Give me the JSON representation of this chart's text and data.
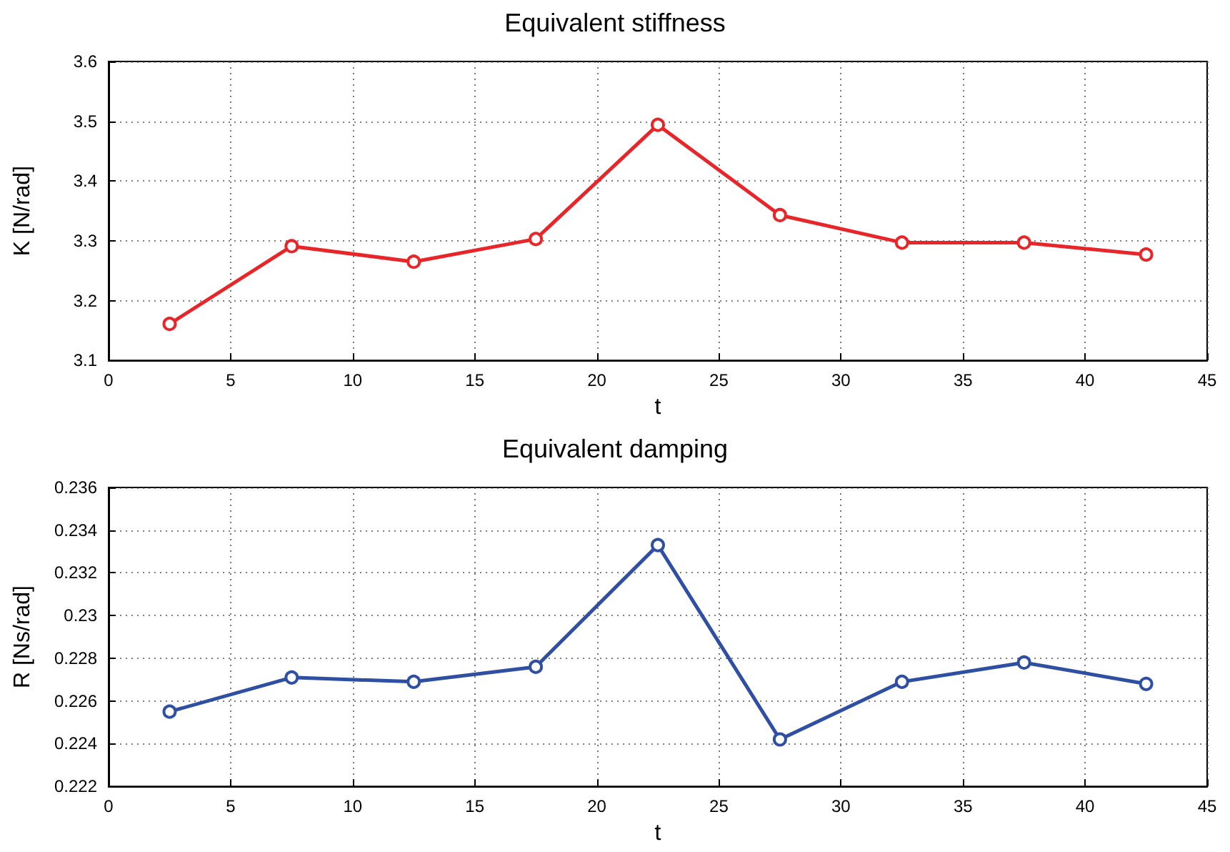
{
  "chart_data": [
    {
      "type": "line",
      "title": "Equivalent stiffness",
      "xlabel": "t",
      "ylabel": "K [N/rad]",
      "x": [
        2.5,
        7.5,
        12.5,
        17.5,
        22.5,
        27.5,
        32.5,
        37.5,
        42.5
      ],
      "series": [
        {
          "color": "#e8262a",
          "values": [
            3.161,
            3.291,
            3.265,
            3.303,
            3.494,
            3.343,
            3.297,
            3.297,
            3.277
          ]
        }
      ],
      "xlim": [
        0,
        45
      ],
      "xticks": [
        0,
        5,
        10,
        15,
        20,
        25,
        30,
        35,
        40,
        45
      ],
      "ylim": [
        3.1,
        3.6
      ],
      "yticks": [
        3.1,
        3.2,
        3.3,
        3.4,
        3.5,
        3.6
      ],
      "grid": true,
      "marker": "circle",
      "line_style": "solid"
    },
    {
      "type": "line",
      "title": "Equivalent damping",
      "xlabel": "t",
      "ylabel": "R [Ns/rad]",
      "x": [
        2.5,
        7.5,
        12.5,
        17.5,
        22.5,
        27.5,
        32.5,
        37.5,
        42.5
      ],
      "series": [
        {
          "color": "#2f4fa2",
          "values": [
            0.2255,
            0.2271,
            0.2269,
            0.2276,
            0.2333,
            0.2242,
            0.2269,
            0.2278,
            0.2268
          ]
        }
      ],
      "xlim": [
        0,
        45
      ],
      "xticks": [
        0,
        5,
        10,
        15,
        20,
        25,
        30,
        35,
        40,
        45
      ],
      "ylim": [
        0.222,
        0.236
      ],
      "yticks": [
        0.222,
        0.224,
        0.226,
        0.228,
        0.23,
        0.232,
        0.234,
        0.236
      ],
      "grid": true,
      "marker": "circle",
      "line_style": "solid"
    }
  ]
}
